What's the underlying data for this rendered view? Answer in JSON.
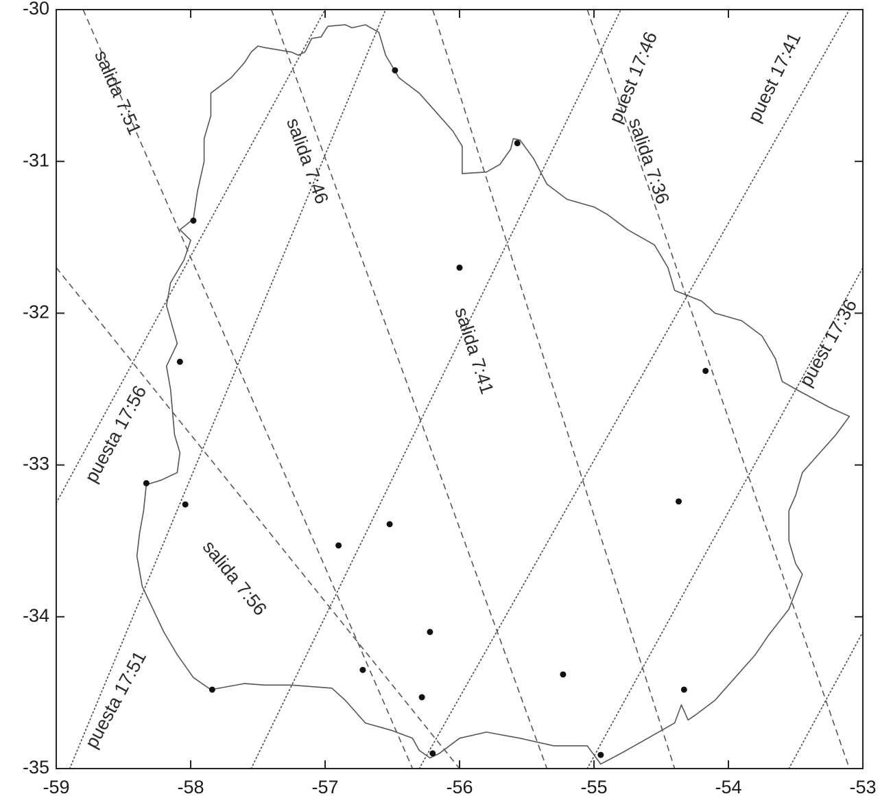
{
  "chart_data": {
    "type": "scatter",
    "title": "",
    "xlabel": "",
    "ylabel": "",
    "xlim": [
      -59,
      -53
    ],
    "ylim": [
      -35,
      -30
    ],
    "grid": false,
    "x_ticks": [
      "-59",
      "-58",
      "-57",
      "-56",
      "-55",
      "-54",
      "-53"
    ],
    "y_ticks": [
      "-30",
      "-31",
      "-32",
      "-33",
      "-34",
      "-35"
    ],
    "dashed_lines": [
      {
        "label": "salida 7:51",
        "p1": [
          -58.8,
          -30.0
        ],
        "p2": [
          -56.35,
          -35.0
        ],
        "label_pos": [
          -58.55,
          -30.55
        ]
      },
      {
        "label": "salida 7:46",
        "p1": [
          -57.4,
          -30.0
        ],
        "p2": [
          -55.35,
          -35.0
        ],
        "label_pos": [
          -57.14,
          -31.0
        ]
      },
      {
        "label": "salida 7:41",
        "p1": [
          -56.2,
          -30.0
        ],
        "p2": [
          -54.4,
          -35.0
        ],
        "label_pos": [
          -55.9,
          -32.25
        ]
      },
      {
        "label": "salida 7:36",
        "p1": [
          -55.05,
          -30.0
        ],
        "p2": [
          -53.1,
          -35.0
        ],
        "label_pos": [
          -54.6,
          -31.0
        ]
      },
      {
        "label": "salida 7:56",
        "p1": [
          -59.0,
          -31.7
        ],
        "p2": [
          -56.0,
          -35.0
        ],
        "label_pos": [
          -57.68,
          -33.75
        ]
      }
    ],
    "dotted_lines": [
      {
        "label": "puest 17:46",
        "p1": [
          -58.9,
          -35.0
        ],
        "p2": [
          -56.55,
          -30.0
        ],
        "label_pos": [
          -54.7,
          -30.45
        ]
      },
      {
        "label": "puest 17:41",
        "p1": [
          -57.55,
          -35.0
        ],
        "p2": [
          -54.8,
          -30.0
        ],
        "label_pos": [
          -53.65,
          -30.45
        ]
      },
      {
        "label": "puest 17:36",
        "p1": [
          -56.3,
          -35.0
        ],
        "p2": [
          -53.1,
          -30.0
        ],
        "label_pos": [
          -53.25,
          -32.2
        ]
      },
      {
        "label": "puesta 17:56",
        "p1": [
          -55.05,
          -35.0
        ],
        "p2": [
          -53.0,
          -31.7
        ],
        "label_pos": [
          -58.55,
          -32.8
        ]
      },
      {
        "label": "puesta 17:51",
        "p1": [
          -59.0,
          -33.25
        ],
        "p2": [
          -57.0,
          -30.0
        ],
        "label_pos": [
          -58.55,
          -34.55
        ]
      },
      {
        "label": "",
        "p1": [
          -53.55,
          -35.0
        ],
        "p2": [
          -53.0,
          -34.1
        ]
      }
    ],
    "points": [
      {
        "x": -56.48,
        "y": -30.4
      },
      {
        "x": -55.57,
        "y": -30.88
      },
      {
        "x": -57.98,
        "y": -31.39
      },
      {
        "x": -56.0,
        "y": -31.7
      },
      {
        "x": -58.08,
        "y": -32.32
      },
      {
        "x": -54.17,
        "y": -32.38
      },
      {
        "x": -58.33,
        "y": -33.12
      },
      {
        "x": -58.04,
        "y": -33.26
      },
      {
        "x": -56.52,
        "y": -33.39
      },
      {
        "x": -56.9,
        "y": -33.53
      },
      {
        "x": -54.37,
        "y": -33.24
      },
      {
        "x": -56.22,
        "y": -34.1
      },
      {
        "x": -56.72,
        "y": -34.35
      },
      {
        "x": -55.23,
        "y": -34.38
      },
      {
        "x": -57.84,
        "y": -34.48
      },
      {
        "x": -56.28,
        "y": -34.53
      },
      {
        "x": -54.33,
        "y": -34.48
      },
      {
        "x": -56.2,
        "y": -34.9
      },
      {
        "x": -54.95,
        "y": -34.91
      }
    ],
    "outline": [
      [
        -57.5,
        -30.24
      ],
      [
        -57.45,
        -30.25
      ],
      [
        -57.25,
        -30.28
      ],
      [
        -57.2,
        -30.3
      ],
      [
        -57.15,
        -30.28
      ],
      [
        -57.1,
        -30.19
      ],
      [
        -57.03,
        -30.18
      ],
      [
        -56.98,
        -30.11
      ],
      [
        -56.85,
        -30.1
      ],
      [
        -56.8,
        -30.12
      ],
      [
        -56.7,
        -30.1
      ],
      [
        -56.6,
        -30.15
      ],
      [
        -56.55,
        -30.3
      ],
      [
        -56.45,
        -30.45
      ],
      [
        -56.3,
        -30.55
      ],
      [
        -56.15,
        -30.7
      ],
      [
        -56.05,
        -30.8
      ],
      [
        -55.98,
        -30.9
      ],
      [
        -55.98,
        -31.08
      ],
      [
        -55.8,
        -31.07
      ],
      [
        -55.7,
        -31.02
      ],
      [
        -55.62,
        -30.92
      ],
      [
        -55.6,
        -30.85
      ],
      [
        -55.55,
        -30.86
      ],
      [
        -55.45,
        -30.98
      ],
      [
        -55.35,
        -31.15
      ],
      [
        -55.2,
        -31.25
      ],
      [
        -55.0,
        -31.3
      ],
      [
        -54.9,
        -31.35
      ],
      [
        -54.75,
        -31.45
      ],
      [
        -54.55,
        -31.55
      ],
      [
        -54.45,
        -31.7
      ],
      [
        -54.4,
        -31.85
      ],
      [
        -54.2,
        -31.92
      ],
      [
        -54.1,
        -32.0
      ],
      [
        -53.9,
        -32.05
      ],
      [
        -53.75,
        -32.15
      ],
      [
        -53.65,
        -32.3
      ],
      [
        -53.6,
        -32.45
      ],
      [
        -53.5,
        -32.5
      ],
      [
        -53.25,
        -32.62
      ],
      [
        -53.1,
        -32.68
      ],
      [
        -53.2,
        -32.8
      ],
      [
        -53.35,
        -32.95
      ],
      [
        -53.45,
        -33.05
      ],
      [
        -53.5,
        -33.2
      ],
      [
        -53.55,
        -33.3
      ],
      [
        -53.55,
        -33.5
      ],
      [
        -53.5,
        -33.65
      ],
      [
        -53.45,
        -33.72
      ],
      [
        -53.55,
        -33.95
      ],
      [
        -53.7,
        -34.12
      ],
      [
        -53.8,
        -34.25
      ],
      [
        -53.95,
        -34.4
      ],
      [
        -54.1,
        -34.55
      ],
      [
        -54.25,
        -34.65
      ],
      [
        -54.3,
        -34.68
      ],
      [
        -54.35,
        -34.58
      ],
      [
        -54.4,
        -34.7
      ],
      [
        -54.6,
        -34.8
      ],
      [
        -54.8,
        -34.9
      ],
      [
        -54.95,
        -34.97
      ],
      [
        -55.05,
        -34.85
      ],
      [
        -55.3,
        -34.85
      ],
      [
        -55.55,
        -34.8
      ],
      [
        -55.8,
        -34.76
      ],
      [
        -56.0,
        -34.8
      ],
      [
        -56.15,
        -34.9
      ],
      [
        -56.22,
        -34.93
      ],
      [
        -56.3,
        -34.88
      ],
      [
        -56.35,
        -34.8
      ],
      [
        -56.5,
        -34.75
      ],
      [
        -56.7,
        -34.7
      ],
      [
        -56.85,
        -34.55
      ],
      [
        -56.95,
        -34.47
      ],
      [
        -57.25,
        -34.45
      ],
      [
        -57.45,
        -34.45
      ],
      [
        -57.6,
        -34.44
      ],
      [
        -57.85,
        -34.48
      ],
      [
        -57.98,
        -34.4
      ],
      [
        -58.1,
        -34.25
      ],
      [
        -58.2,
        -34.1
      ],
      [
        -58.28,
        -33.95
      ],
      [
        -58.36,
        -33.8
      ],
      [
        -58.4,
        -33.6
      ],
      [
        -58.38,
        -33.45
      ],
      [
        -58.35,
        -33.3
      ],
      [
        -58.33,
        -33.13
      ],
      [
        -58.22,
        -33.1
      ],
      [
        -58.1,
        -33.05
      ],
      [
        -58.08,
        -32.92
      ],
      [
        -58.12,
        -32.8
      ],
      [
        -58.15,
        -32.5
      ],
      [
        -58.18,
        -32.35
      ],
      [
        -58.1,
        -32.2
      ],
      [
        -58.18,
        -31.95
      ],
      [
        -58.15,
        -31.8
      ],
      [
        -58.05,
        -31.65
      ],
      [
        -58.0,
        -31.52
      ],
      [
        -58.08,
        -31.45
      ],
      [
        -57.98,
        -31.38
      ],
      [
        -57.95,
        -31.2
      ],
      [
        -57.9,
        -31.0
      ],
      [
        -57.9,
        -30.85
      ],
      [
        -57.85,
        -30.7
      ],
      [
        -57.85,
        -30.55
      ],
      [
        -57.7,
        -30.45
      ],
      [
        -57.6,
        -30.35
      ],
      [
        -57.55,
        -30.28
      ],
      [
        -57.5,
        -30.24
      ]
    ]
  }
}
